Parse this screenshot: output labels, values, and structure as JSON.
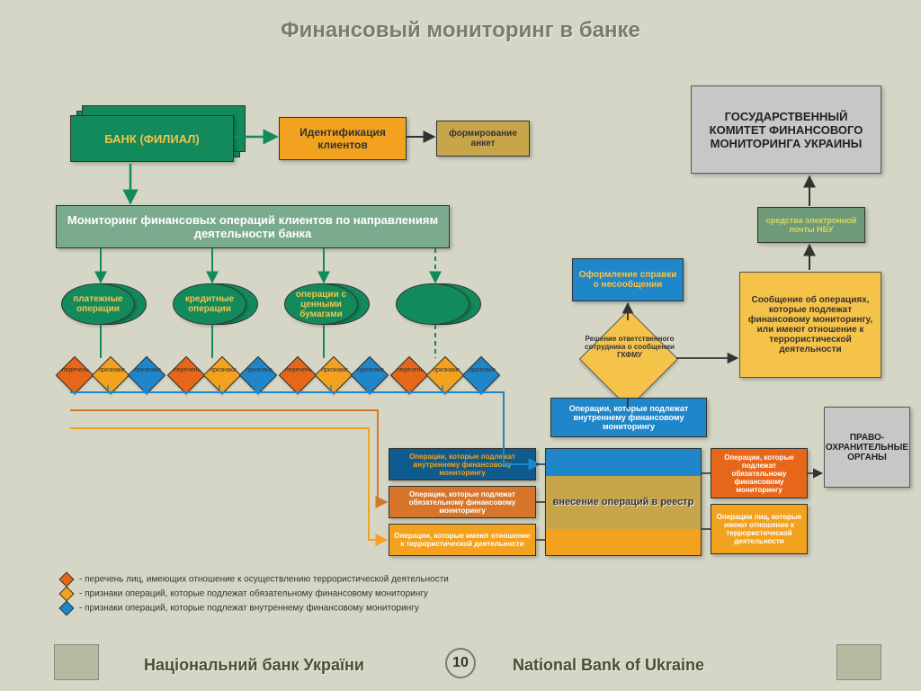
{
  "colors": {
    "bg": "#d5d6c5",
    "green": "#128a5c",
    "soft_green": "#7aab8e",
    "orange": "#f3a21f",
    "orange_dark": "#d7762a",
    "vermilion": "#e6671a",
    "yellow": "#f6c34a",
    "brown_yellow": "#c7a64b",
    "blue": "#1f86c9",
    "blue_dark": "#0f5b8e",
    "gray": "#c7c7c7",
    "gray_border": "#595959",
    "white": "#ffffff",
    "title_gray": "#7a7d6d"
  },
  "title": "Финансовый мониторинг в банке",
  "nodes": {
    "bank": {
      "label": "БАНК (ФИЛИАЛ)"
    },
    "ident": {
      "label": "Идентификация клиентов"
    },
    "anket": {
      "label": "формирование анкет"
    },
    "committee": {
      "label": "ГОСУДАРСТВЕННЫЙ КОМИТЕТ ФИНАНСОВОГО МОНИТОРИНГА УКРАИНЫ"
    },
    "monitor": {
      "label": "Мониторинг финансовых операций клиентов по направлениям деятельности банка"
    },
    "mail": {
      "label": "средства электронной почты НБУ"
    },
    "op1": {
      "label": "платежные операции"
    },
    "op2": {
      "label": "кредитные операции"
    },
    "op3": {
      "label": "операции с ценными бумагами"
    },
    "spravka": {
      "label": "Оформление справки о несообщении"
    },
    "msg": {
      "label": "Сообщение об операциях, которые подлежат финансовому мониторингу, или имеют отношение к террористической деятельности"
    },
    "decision": {
      "label": "Решение ответственного сотрудника о сообщении ГКФМУ"
    },
    "vnut_blue": {
      "label": "Операции, которые подлежат внутреннему финансовому мониторингу"
    },
    "vnut_blue2": {
      "label": "Операции, которые подлежат внутреннему финансовому мониторингу"
    },
    "oblig": {
      "label": "Операции, которые подлежат обязательному финансовому мониторингу"
    },
    "terror": {
      "label": "Операции, которые имеют отношение к террористической деятельности"
    },
    "registry": {
      "label": "внесение операций в реестр"
    },
    "oblig2": {
      "label": "Операции, которые подлежат обязательному финансовому мониторингу"
    },
    "terror2": {
      "label": "Операции лиц, которые имеют отношение к террористической деятельности"
    },
    "law": {
      "label": "ПРАВО-ОХРАНИТЕЛЬНЫЕ ОРГАНЫ"
    }
  },
  "diamond_labels": [
    "перечень",
    "признаки",
    "признаки",
    "перечень",
    "признаки",
    "признаки",
    "перечень",
    "признаки",
    "признаки",
    "перечень",
    "признаки",
    "признаки"
  ],
  "legend": [
    {
      "color": "#e6671a",
      "text": "- перечень лиц, имеющих отношение к осуществлению террористической деятельности"
    },
    {
      "color": "#f3a21f",
      "text": "- признаки операций, которые подлежат обязательному финансовому мониторингу"
    },
    {
      "color": "#1f86c9",
      "text": "- признаки операций, которые подлежат внутреннему финансовому мониторингу"
    }
  ],
  "footer": {
    "left": "Національний банк України",
    "right": "National Bank of Ukraine",
    "page": "10"
  }
}
